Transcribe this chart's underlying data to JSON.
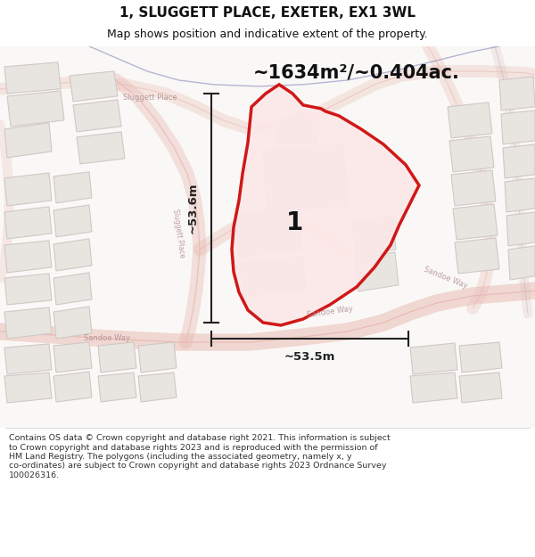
{
  "title": "1, SLUGGETT PLACE, EXETER, EX1 3WL",
  "subtitle": "Map shows position and indicative extent of the property.",
  "area_text": "~1634m²/~0.404ac.",
  "label_number": "1",
  "dim_vertical": "~53.6m",
  "dim_horizontal": "~53.5m",
  "footer": "Contains OS data © Crown copyright and database right 2021. This information is subject\nto Crown copyright and database rights 2023 and is reproduced with the permission of\nHM Land Registry. The polygons (including the associated geometry, namely x, y\nco-ordinates) are subject to Crown copyright and database rights 2023 Ordnance Survey\n100026316.",
  "bg_color": "#f8f4f2",
  "road_stroke": "#e8b8b0",
  "road_fill": "#f8f0ee",
  "building_fill": "#e8e4e0",
  "building_stroke": "#d0c8c4",
  "plot_fill": "#fce8e8",
  "plot_stroke": "#cc0000",
  "dim_color": "#222222",
  "text_dark": "#111111",
  "text_road": "#c0a0a0",
  "street_label_color": "#b09090",
  "blue_line": "#8888bb"
}
